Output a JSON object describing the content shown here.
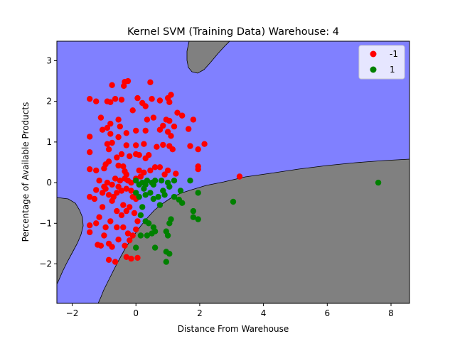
{
  "chart_data": {
    "type": "scatter",
    "title": "Kernel SVM (Training Data) Warehouse: 4",
    "xlabel": "Distance From Warehouse",
    "ylabel": "Percentage of Available Products",
    "xlim": [
      -2.48,
      8.58
    ],
    "ylim": [
      -2.97,
      3.48
    ],
    "xticks": [
      -2,
      0,
      2,
      4,
      6,
      8
    ],
    "yticks": [
      -2,
      -1,
      0,
      1,
      2,
      3
    ],
    "grid": false,
    "legend_position": "top-right",
    "region_colors": {
      "-1": "#8080ff",
      "1": "#808080"
    },
    "series": [
      {
        "name": "-1",
        "color": "#ff0000",
        "points": [
          [
            -0.75,
            2.4
          ],
          [
            -0.38,
            2.38
          ],
          [
            -0.35,
            2.48
          ],
          [
            -0.25,
            2.5
          ],
          [
            0.45,
            2.47
          ],
          [
            -1.45,
            2.06
          ],
          [
            -1.25,
            2.0
          ],
          [
            -0.9,
            2.0
          ],
          [
            -0.8,
            1.98
          ],
          [
            -0.65,
            2.06
          ],
          [
            -0.45,
            2.04
          ],
          [
            0.05,
            2.08
          ],
          [
            0.2,
            1.96
          ],
          [
            0.3,
            1.88
          ],
          [
            0.5,
            2.06
          ],
          [
            0.75,
            2.02
          ],
          [
            1.0,
            2.08
          ],
          [
            1.1,
            2.16
          ],
          [
            1.05,
            1.98
          ],
          [
            -1.1,
            1.6
          ],
          [
            -0.8,
            1.45
          ],
          [
            -0.9,
            1.35
          ],
          [
            -1.05,
            1.3
          ],
          [
            -0.55,
            1.55
          ],
          [
            -0.5,
            1.38
          ],
          [
            -0.1,
            1.78
          ],
          [
            0.35,
            1.55
          ],
          [
            0.55,
            1.6
          ],
          [
            0.85,
            1.4
          ],
          [
            0.95,
            1.55
          ],
          [
            1.3,
            1.72
          ],
          [
            1.45,
            1.65
          ],
          [
            1.8,
            1.55
          ],
          [
            1.65,
            1.32
          ],
          [
            -1.45,
            1.13
          ],
          [
            -0.8,
            1.2
          ],
          [
            -0.55,
            1.12
          ],
          [
            -0.3,
            1.22
          ],
          [
            0.0,
            1.28
          ],
          [
            0.3,
            1.28
          ],
          [
            0.75,
            1.3
          ],
          [
            1.0,
            1.25
          ],
          [
            1.1,
            1.15
          ],
          [
            1.2,
            1.38
          ],
          [
            1.05,
            1.52
          ],
          [
            -0.9,
            0.95
          ],
          [
            -0.75,
            0.98
          ],
          [
            -0.3,
            0.92
          ],
          [
            0.0,
            0.92
          ],
          [
            0.25,
            0.95
          ],
          [
            0.65,
            0.88
          ],
          [
            0.85,
            0.93
          ],
          [
            1.05,
            0.9
          ],
          [
            1.15,
            0.82
          ],
          [
            1.7,
            0.9
          ],
          [
            2.15,
            0.95
          ],
          [
            1.95,
            0.82
          ],
          [
            -1.45,
            0.75
          ],
          [
            -0.85,
            0.82
          ],
          [
            -0.6,
            0.62
          ],
          [
            -0.45,
            0.7
          ],
          [
            -0.2,
            0.65
          ],
          [
            0.0,
            0.7
          ],
          [
            0.1,
            0.68
          ],
          [
            0.4,
            0.68
          ],
          [
            0.3,
            0.6
          ],
          [
            -1.45,
            0.33
          ],
          [
            -1.25,
            0.3
          ],
          [
            -1.0,
            0.35
          ],
          [
            -0.95,
            0.45
          ],
          [
            -0.85,
            0.52
          ],
          [
            -0.55,
            0.42
          ],
          [
            -0.35,
            0.28
          ],
          [
            0.1,
            0.3
          ],
          [
            0.25,
            0.25
          ],
          [
            0.45,
            0.3
          ],
          [
            0.6,
            0.38
          ],
          [
            0.75,
            0.38
          ],
          [
            1.0,
            0.3
          ],
          [
            0.9,
            0.2
          ],
          [
            1.25,
            0.22
          ],
          [
            1.95,
            0.33
          ],
          [
            1.95,
            0.4
          ],
          [
            -1.45,
            -0.35
          ],
          [
            -1.3,
            -0.4
          ],
          [
            -1.25,
            -0.18
          ],
          [
            -1.0,
            -0.1
          ],
          [
            -0.9,
            0.0
          ],
          [
            -0.75,
            -0.05
          ],
          [
            -0.65,
            0.1
          ],
          [
            -0.5,
            0.05
          ],
          [
            -0.3,
            -0.15
          ],
          [
            -0.15,
            0.0
          ],
          [
            0.0,
            0.1
          ],
          [
            -0.1,
            -0.35
          ],
          [
            -0.4,
            -0.55
          ],
          [
            -0.6,
            -0.7
          ],
          [
            -0.75,
            -0.45
          ],
          [
            -1.05,
            -0.6
          ],
          [
            -1.15,
            -0.85
          ],
          [
            -1.25,
            -1.0
          ],
          [
            -1.45,
            -1.05
          ],
          [
            -1.45,
            -1.22
          ],
          [
            -0.95,
            -1.1
          ],
          [
            -0.8,
            -0.95
          ],
          [
            -0.6,
            -1.1
          ],
          [
            -0.45,
            -0.8
          ],
          [
            -0.3,
            -0.7
          ],
          [
            -0.2,
            -0.6
          ],
          [
            -0.05,
            -0.75
          ],
          [
            0.05,
            -0.95
          ],
          [
            -0.25,
            -1.25
          ],
          [
            -0.1,
            -1.3
          ],
          [
            0.0,
            -1.15
          ],
          [
            -1.0,
            -1.3
          ],
          [
            -1.1,
            -1.55
          ],
          [
            -1.2,
            -1.53
          ],
          [
            -0.85,
            -1.5
          ],
          [
            -0.75,
            -1.58
          ],
          [
            -0.35,
            -1.55
          ],
          [
            -0.3,
            -1.83
          ],
          [
            -0.15,
            -1.87
          ],
          [
            0.05,
            -1.85
          ],
          [
            -0.85,
            -1.9
          ],
          [
            -0.65,
            -1.95
          ],
          [
            -0.2,
            -1.42
          ],
          [
            -0.55,
            -1.4
          ],
          [
            -0.4,
            -1.1
          ],
          [
            3.25,
            0.15
          ],
          [
            -0.35,
            0.1
          ],
          [
            -0.25,
            0.05
          ],
          [
            -0.6,
            -0.25
          ],
          [
            -0.45,
            -0.2
          ],
          [
            -0.85,
            -0.3
          ],
          [
            -1.05,
            -0.25
          ],
          [
            -0.7,
            -0.35
          ],
          [
            -0.55,
            -0.1
          ],
          [
            -0.15,
            -0.2
          ],
          [
            0.0,
            -0.4
          ],
          [
            -0.3,
            0.2
          ],
          [
            0.15,
            0.15
          ],
          [
            -1.15,
            0.05
          ],
          [
            -0.95,
            -0.15
          ],
          [
            -0.4,
            0.4
          ]
        ]
      },
      {
        "name": "1",
        "color": "#008000",
        "points": [
          [
            0.0,
            0.05
          ],
          [
            0.1,
            -0.05
          ],
          [
            0.2,
            0.0
          ],
          [
            0.3,
            -0.05
          ],
          [
            0.35,
            0.05
          ],
          [
            0.5,
            0.0
          ],
          [
            0.55,
            -0.05
          ],
          [
            0.6,
            0.05
          ],
          [
            0.8,
            0.05
          ],
          [
            1.0,
            0.0
          ],
          [
            1.05,
            -0.1
          ],
          [
            1.2,
            0.05
          ],
          [
            1.4,
            -0.2
          ],
          [
            1.7,
            0.05
          ],
          [
            1.95,
            -0.25
          ],
          [
            1.2,
            -0.35
          ],
          [
            1.45,
            -0.5
          ],
          [
            1.35,
            -0.42
          ],
          [
            0.1,
            -0.35
          ],
          [
            0.3,
            -0.3
          ],
          [
            0.45,
            -0.25
          ],
          [
            0.55,
            -0.4
          ],
          [
            0.7,
            -0.35
          ],
          [
            0.9,
            -0.3
          ],
          [
            0.2,
            -0.6
          ],
          [
            0.15,
            -0.8
          ],
          [
            0.3,
            -0.95
          ],
          [
            0.4,
            -1.0
          ],
          [
            0.55,
            -1.1
          ],
          [
            0.5,
            -1.25
          ],
          [
            0.6,
            -1.2
          ],
          [
            0.35,
            -1.3
          ],
          [
            0.15,
            -1.3
          ],
          [
            0.0,
            -1.6
          ],
          [
            0.6,
            -1.6
          ],
          [
            0.95,
            -1.2
          ],
          [
            1.0,
            -1.3
          ],
          [
            1.05,
            -1.0
          ],
          [
            1.1,
            -0.9
          ],
          [
            0.95,
            -1.7
          ],
          [
            1.05,
            -1.75
          ],
          [
            0.95,
            -1.95
          ],
          [
            1.8,
            -0.7
          ],
          [
            1.8,
            -0.85
          ],
          [
            1.95,
            -0.9
          ],
          [
            3.05,
            -0.47
          ],
          [
            7.6,
            0.0
          ],
          [
            0.85,
            -0.2
          ],
          [
            0.75,
            -0.55
          ],
          [
            0.0,
            -0.25
          ],
          [
            0.25,
            -0.15
          ]
        ]
      }
    ]
  }
}
